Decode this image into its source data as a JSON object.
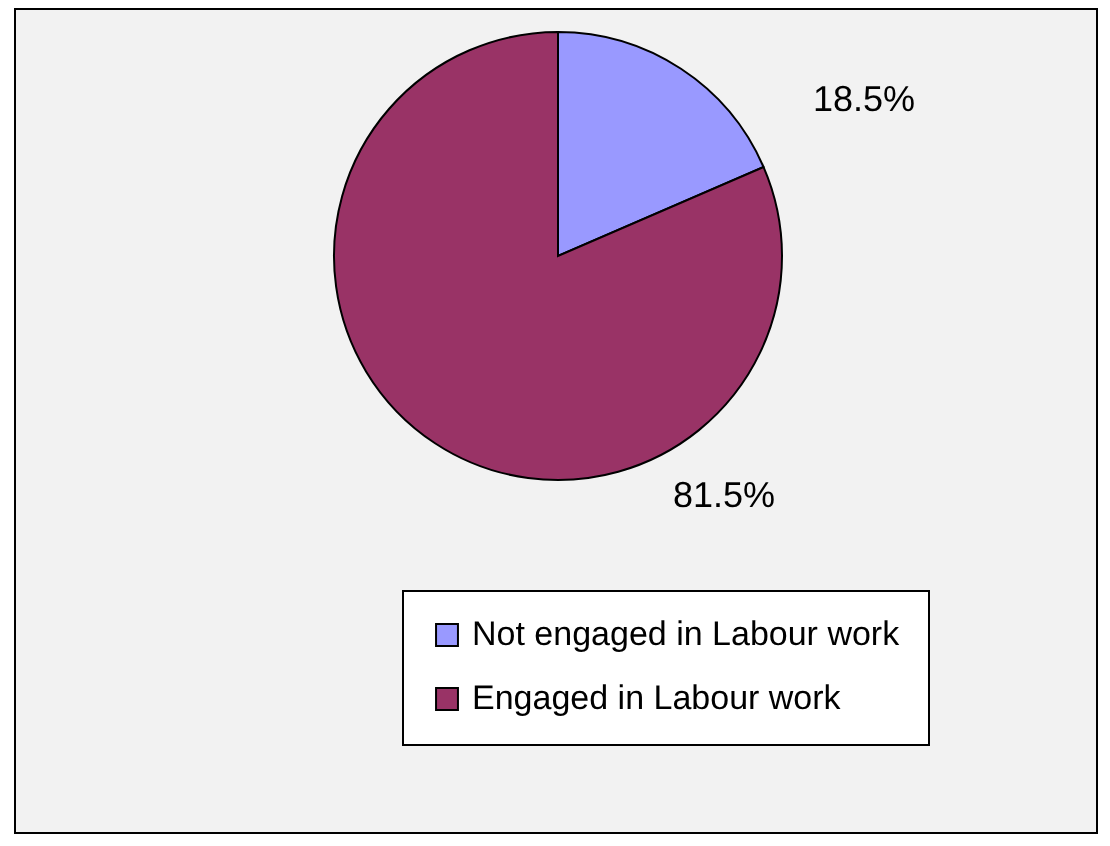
{
  "chart_data": {
    "type": "pie",
    "categories": [
      "Not engaged in Labour work",
      "Engaged in Labour work"
    ],
    "values": [
      18.5,
      81.5
    ],
    "colors": [
      "#9999ff",
      "#993366"
    ],
    "value_labels": [
      "18.5%",
      "81.5%"
    ],
    "legend": "bottom"
  }
}
